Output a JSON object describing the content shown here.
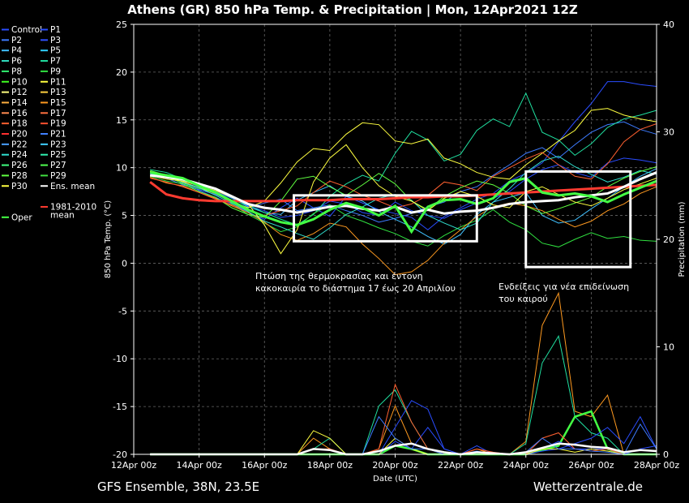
{
  "title": "Athens  (GR)  850 hPa Temp. & Precipitation | Mon, 12Apr2021 12Z",
  "footer_left": "GFS Ensemble, 38N, 23.5E",
  "footer_right": "Wetterzentrale.de",
  "colors": {
    "background": "#000000",
    "ens_mean": "#ffffff",
    "climate_mean": "#ff3b30",
    "oper": "#44ff44",
    "control": "#2a4dff",
    "box": "#ffffff"
  },
  "notes": {
    "left_line1": "Πτώση της θερμοκρασίας και έντονη",
    "left_line2": "κακοκαιρία το διάστημα 17 έως 20 Απριλίου",
    "right_line1": "Ενδείξεις για νέα επιδείνωση",
    "right_line2": "του καιρού"
  },
  "chart_data": {
    "type": "line",
    "title": "Athens  (GR)  850 hPa Temp. & Precipitation | Mon, 12Apr2021 12Z",
    "xlabel": "Date (UTC)",
    "ylabel": "850 hPa Temp. (°C)",
    "y2label": "Precipitation (mm)",
    "xlim": [
      0,
      16
    ],
    "ylim": [
      -20,
      25
    ],
    "y2lim": [
      0,
      40
    ],
    "grid": true,
    "x_ticks": [
      0,
      2,
      4,
      6,
      8,
      10,
      12,
      14,
      16
    ],
    "x_tick_labels": [
      "12Apr 00z",
      "14Apr 00z",
      "16Apr 00z",
      "18Apr 00z",
      "20Apr 00z",
      "22Apr 00z",
      "24Apr 00z",
      "26Apr 00z",
      "28Apr 00z"
    ],
    "y_ticks": [
      -20,
      -15,
      -10,
      -5,
      0,
      5,
      10,
      15,
      20,
      25
    ],
    "y2_ticks": [
      0,
      10,
      20,
      30,
      40
    ],
    "legend_position": "left",
    "legend": [
      "Control",
      "P1",
      "P2",
      "P3",
      "P4",
      "P5",
      "P6",
      "P7",
      "P8",
      "P9",
      "P10",
      "P11",
      "P12",
      "P13",
      "P14",
      "P15",
      "P16",
      "P17",
      "P18",
      "P19",
      "P20",
      "P21",
      "P22",
      "P23",
      "P24",
      "P25",
      "P26",
      "P27",
      "P28",
      "P29",
      "P30",
      "Ens. mean",
      "1981-2010\nmean",
      "Oper"
    ],
    "legend_colors": [
      "#2a4dff",
      "#2a4dff",
      "#3d7bff",
      "#3050ff",
      "#40c0ff",
      "#30d0ff",
      "#30e0c0",
      "#20e0a0",
      "#30f070",
      "#30e040",
      "#40ff20",
      "#ffff40",
      "#ffff80",
      "#ffd040",
      "#ffb040",
      "#ff9a20",
      "#ff8a50",
      "#ff7040",
      "#ff6030",
      "#ff5030",
      "#ff3030",
      "#4080ff",
      "#4aa0ff",
      "#40d0ff",
      "#30e0d0",
      "#30f0b0",
      "#40ff80",
      "#50ff50",
      "#60ff40",
      "#40e040",
      "#ffff40",
      "#ffffff",
      "#ff3b30",
      "#44ff44"
    ],
    "annotations": [
      {
        "x_range": [
          4.9,
          10.5
        ],
        "y_range": [
          2.3,
          7.1
        ]
      },
      {
        "x_range": [
          12.0,
          15.2
        ],
        "y_range": [
          -0.4,
          9.6
        ]
      }
    ],
    "x": [
      0.5,
      1.0,
      1.5,
      2.0,
      2.5,
      3.0,
      3.5,
      4.0,
      4.5,
      5.0,
      5.5,
      6.0,
      6.5,
      7.0,
      7.5,
      8.0,
      8.5,
      9.0,
      9.5,
      10.0,
      10.5,
      11.0,
      11.5,
      12.0,
      12.5,
      13.0,
      13.5,
      14.0,
      14.5,
      15.0,
      15.5,
      16.0
    ],
    "series": [
      {
        "name": "Ens. mean",
        "values": [
          9.2,
          9.0,
          8.8,
          8.3,
          7.8,
          7.0,
          6.2,
          5.8,
          5.6,
          5.3,
          5.6,
          5.9,
          6.0,
          5.7,
          5.5,
          5.9,
          5.3,
          5.6,
          5.2,
          5.4,
          5.5,
          5.8,
          6.2,
          6.4,
          6.5,
          6.6,
          6.9,
          7.1,
          7.3,
          8.0,
          8.8,
          9.5
        ]
      },
      {
        "name": "1981-2010\nmean",
        "values": [
          8.5,
          7.2,
          6.8,
          6.6,
          6.5,
          6.5,
          6.5,
          6.5,
          6.5,
          6.6,
          6.6,
          6.6,
          6.7,
          6.7,
          6.7,
          6.8,
          6.9,
          6.9,
          7.0,
          7.0,
          7.1,
          7.2,
          7.3,
          7.4,
          7.5,
          7.6,
          7.7,
          7.8,
          7.9,
          8.0,
          8.1,
          8.2
        ]
      },
      {
        "name": "Oper",
        "values": [
          9.5,
          9.2,
          8.9,
          8.1,
          7.4,
          6.5,
          5.6,
          4.9,
          4.3,
          4.0,
          4.6,
          5.6,
          6.3,
          5.8,
          5.0,
          6.0,
          3.3,
          5.9,
          6.6,
          6.7,
          6.2,
          6.8,
          8.5,
          8.9,
          7.4,
          7.1,
          7.3,
          7.0,
          6.4,
          7.2,
          7.9,
          8.6
        ]
      },
      {
        "name": "Control",
        "values": [
          9.3,
          9.1,
          8.7,
          8.0,
          7.5,
          6.8,
          6.0,
          5.5,
          4.8,
          5.0,
          5.5,
          6.5,
          6.2,
          5.3,
          5.0,
          6.4,
          5.5,
          5.0,
          4.7,
          5.6,
          6.3,
          6.8,
          7.5,
          8.8,
          9.8,
          10.3,
          9.5,
          9.0,
          10.5,
          11.0,
          10.8,
          10.5
        ]
      },
      {
        "name": "P1",
        "values": [
          9.1,
          9.3,
          8.6,
          7.6,
          6.9,
          6.2,
          5.3,
          4.6,
          5.8,
          6.8,
          5.8,
          4.9,
          7.0,
          6.3,
          5.6,
          5.2,
          4.8,
          3.5,
          4.9,
          5.8,
          6.7,
          7.3,
          8.6,
          9.4,
          10.5,
          12.7,
          14.8,
          16.7,
          19.0,
          19.0,
          18.7,
          18.5
        ]
      },
      {
        "name": "P2",
        "values": [
          9.6,
          8.9,
          8.2,
          7.7,
          7.2,
          6.5,
          5.8,
          6.3,
          6.7,
          5.5,
          5.8,
          6.1,
          5.5,
          5.0,
          4.3,
          4.7,
          5.2,
          5.9,
          6.4,
          7.5,
          8.0,
          9.2,
          10.3,
          11.5,
          12.1,
          11.0,
          12.4,
          13.7,
          14.5,
          14.8,
          14.0,
          13.5
        ]
      },
      {
        "name": "P4",
        "values": [
          9.4,
          9.0,
          8.6,
          8.2,
          7.7,
          6.8,
          5.9,
          5.3,
          5.1,
          6.6,
          7.4,
          8.1,
          7.0,
          6.5,
          5.4,
          4.6,
          3.8,
          2.8,
          2.0,
          3.0,
          5.1,
          6.4,
          6.9,
          7.4,
          5.0,
          4.2,
          4.5,
          5.7,
          6.8,
          8.0,
          9.1,
          9.9
        ]
      },
      {
        "name": "P7",
        "values": [
          9.8,
          9.5,
          8.8,
          8.1,
          7.4,
          6.6,
          6.1,
          5.3,
          4.6,
          4.0,
          5.1,
          7.0,
          8.3,
          9.2,
          8.6,
          11.5,
          13.8,
          12.9,
          10.7,
          11.4,
          13.9,
          15.1,
          14.3,
          17.8,
          13.7,
          12.9,
          11.3,
          12.5,
          14.2,
          15.1,
          15.5,
          16.0
        ]
      },
      {
        "name": "P9",
        "values": [
          9.1,
          8.6,
          8.3,
          7.8,
          7.5,
          6.2,
          5.1,
          4.2,
          3.3,
          3.8,
          5.2,
          6.1,
          5.0,
          4.4,
          3.7,
          3.1,
          2.3,
          1.8,
          2.9,
          3.8,
          4.5,
          5.6,
          4.3,
          3.5,
          2.1,
          1.7,
          2.5,
          3.2,
          2.6,
          2.8,
          2.4,
          2.3
        ]
      },
      {
        "name": "P11",
        "values": [
          9.6,
          9.2,
          8.5,
          7.9,
          7.3,
          6.4,
          5.8,
          6.5,
          8.4,
          10.6,
          12.0,
          11.8,
          13.5,
          14.7,
          14.5,
          12.8,
          12.5,
          13.0,
          11.0,
          10.4,
          9.5,
          9.0,
          8.8,
          10.3,
          11.5,
          12.8,
          13.9,
          16.0,
          16.2,
          15.5,
          15.1,
          14.8
        ]
      },
      {
        "name": "P15",
        "values": [
          9.0,
          8.4,
          8.1,
          7.4,
          6.8,
          6.0,
          5.3,
          4.3,
          3.0,
          2.4,
          3.1,
          4.2,
          3.8,
          2.0,
          0.5,
          -1.2,
          -0.9,
          0.3,
          2.1,
          3.5,
          4.9,
          5.9,
          6.3,
          6.0,
          5.5,
          4.6,
          3.8,
          4.4,
          5.5,
          6.2,
          7.3,
          8.0
        ]
      },
      {
        "name": "P18",
        "values": [
          8.9,
          8.5,
          8.0,
          7.4,
          6.7,
          6.1,
          5.5,
          5.0,
          5.5,
          6.0,
          7.4,
          8.6,
          8.0,
          7.1,
          6.5,
          5.8,
          6.2,
          7.1,
          8.5,
          8.2,
          7.6,
          9.1,
          10.0,
          10.9,
          11.6,
          10.3,
          9.1,
          8.8,
          10.4,
          12.7,
          14.0,
          14.6
        ]
      },
      {
        "name": "P24",
        "values": [
          9.5,
          9.0,
          8.4,
          7.9,
          7.1,
          6.3,
          5.4,
          4.4,
          3.8,
          3.1,
          2.5,
          3.7,
          5.1,
          5.9,
          6.8,
          7.2,
          6.6,
          5.0,
          4.2,
          3.5,
          4.2,
          6.4,
          7.8,
          9.5,
          10.7,
          11.2,
          10.1,
          9.3,
          8.5,
          9.0,
          9.7,
          9.3
        ]
      },
      {
        "name": "P28",
        "values": [
          9.7,
          9.2,
          8.3,
          7.5,
          6.9,
          5.8,
          5.1,
          4.8,
          6.5,
          8.8,
          9.1,
          8.0,
          7.1,
          8.2,
          9.4,
          8.3,
          6.5,
          5.6,
          7.0,
          7.9,
          8.6,
          8.2,
          7.3,
          6.0,
          5.2,
          5.7,
          6.3,
          6.9,
          8.0,
          8.9,
          9.6,
          10.1
        ]
      },
      {
        "name": "P30",
        "values": [
          9.2,
          8.8,
          8.6,
          8.1,
          7.6,
          6.9,
          6.2,
          4.0,
          1.0,
          3.5,
          8.5,
          11.0,
          12.4,
          10.0,
          8.1,
          7.0,
          6.5,
          5.5,
          6.8,
          7.5,
          7.0,
          6.1,
          5.8,
          7.5,
          8.0,
          7.2,
          6.4,
          6.0,
          6.8,
          7.7,
          8.3,
          8.9
        ]
      }
    ],
    "precip_series": [
      {
        "name": "P15",
        "values": [
          0,
          0,
          0,
          0,
          0,
          0,
          0,
          0,
          0,
          0,
          1.5,
          0.5,
          0,
          0,
          0.5,
          4.5,
          1.0,
          0.5,
          0,
          0,
          0.5,
          0,
          0,
          1.2,
          12.0,
          15.0,
          4.0,
          3.5,
          5.5,
          0,
          0,
          0
        ]
      },
      {
        "name": "P7",
        "values": [
          0,
          0,
          0,
          0,
          0,
          0,
          0,
          0,
          0,
          0,
          0.5,
          1.5,
          0,
          0,
          4.5,
          6.0,
          3.0,
          0.5,
          0,
          0,
          0,
          0,
          0,
          1.0,
          8.5,
          11.0,
          3.5,
          2.0,
          1.5,
          0,
          0,
          0
        ]
      },
      {
        "name": "Oper",
        "values": [
          0,
          0,
          0,
          0,
          0,
          0,
          0,
          0,
          0,
          0,
          0,
          0,
          0,
          0,
          0,
          0.8,
          0.5,
          0,
          0,
          0,
          0,
          0,
          0,
          0,
          0.4,
          0.8,
          3.5,
          4.0,
          0.5,
          0,
          0,
          0
        ]
      },
      {
        "name": "Control",
        "values": [
          0,
          0,
          0,
          0,
          0,
          0,
          0,
          0,
          0,
          0,
          0,
          0,
          0,
          0,
          0,
          1.2,
          0.5,
          2.5,
          0.5,
          0,
          0.8,
          0,
          0,
          0,
          0.5,
          1.2,
          0.5,
          0.5,
          0.5,
          0,
          0.5,
          0.8
        ]
      },
      {
        "name": "P1",
        "values": [
          0,
          0,
          0,
          0,
          0,
          0,
          0,
          0,
          0,
          0,
          0,
          0,
          0,
          0,
          0,
          2.5,
          5.0,
          4.2,
          0.5,
          0,
          0,
          0,
          0,
          0,
          0.3,
          0.5,
          1.0,
          1.5,
          2.5,
          1.0,
          3.5,
          0.5
        ]
      },
      {
        "name": "P11",
        "values": [
          0,
          0,
          0,
          0,
          0,
          0,
          0,
          0,
          0,
          0,
          2.2,
          1.5,
          0,
          0,
          0,
          1.5,
          0.5,
          0,
          0,
          0,
          0,
          0,
          0,
          0,
          0.5,
          0.5,
          0.2,
          0.5,
          0.3,
          0,
          0,
          0
        ]
      },
      {
        "name": "P18",
        "values": [
          0,
          0,
          0,
          0,
          0,
          0,
          0,
          0,
          0,
          0,
          0.5,
          0.5,
          0,
          0,
          0.5,
          6.5,
          3.0,
          0.5,
          0,
          0,
          0.5,
          0.2,
          0,
          0,
          1.5,
          2.0,
          0.5,
          0.3,
          0.5,
          0,
          0,
          0
        ]
      },
      {
        "name": "P2",
        "values": [
          0,
          0,
          0,
          0,
          0,
          0,
          0,
          0,
          0,
          0,
          0,
          0,
          0,
          0,
          3.5,
          1.5,
          0.5,
          0.5,
          0,
          0,
          0.3,
          0,
          0,
          0.2,
          1.5,
          0.5,
          0.5,
          0.3,
          0.2,
          0,
          2.8,
          0.5
        ]
      },
      {
        "name": "Ens. mean",
        "values": [
          0,
          0,
          0,
          0,
          0,
          0,
          0,
          0,
          0,
          0,
          0.5,
          0.4,
          0,
          0,
          0.3,
          0.8,
          1.0,
          0.5,
          0.2,
          0,
          0.2,
          0.1,
          0,
          0.2,
          0.6,
          1.0,
          0.9,
          0.7,
          0.6,
          0.2,
          0.4,
          0.3
        ]
      }
    ]
  }
}
